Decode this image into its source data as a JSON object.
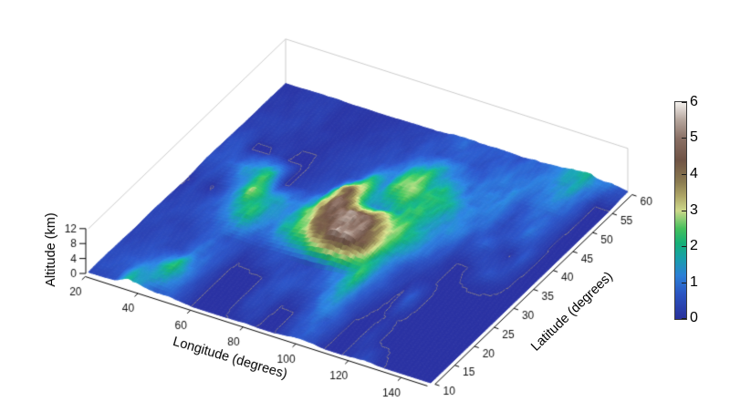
{
  "figure": {
    "background": "#ffffff",
    "box_color": "#cccccc",
    "axis_color": "#000000",
    "tick_label_color": "#111111",
    "coastline_color": "#b3a27c",
    "tick_font_px": 12
  },
  "chart_data": {
    "type": "surface",
    "title": "",
    "xlabel": "Longitude (degrees)",
    "ylabel": "Latitude (degrees)",
    "zlabel": "Altitude (km)",
    "x_range": [
      20,
      150
    ],
    "y_range": [
      10,
      60
    ],
    "z_range": [
      0,
      12
    ],
    "x_ticks": [
      20,
      40,
      60,
      80,
      100,
      120,
      140
    ],
    "y_ticks": [
      10,
      15,
      20,
      25,
      30,
      35,
      40,
      45,
      50,
      55,
      60
    ],
    "z_ticks": [
      0,
      4,
      8,
      12
    ],
    "color_range": [
      0,
      6
    ],
    "colorbar_ticks": [
      0,
      1,
      2,
      3,
      4,
      5,
      6
    ],
    "colormap": [
      [
        0.0,
        "#28309a"
      ],
      [
        0.7,
        "#2b55c2"
      ],
      [
        1.2,
        "#2b7fd6"
      ],
      [
        1.7,
        "#17a0a8"
      ],
      [
        2.1,
        "#16b077"
      ],
      [
        2.5,
        "#45c05c"
      ],
      [
        3.0,
        "#cdd88a"
      ],
      [
        3.4,
        "#ada566"
      ],
      [
        3.8,
        "#8a7a50"
      ],
      [
        4.4,
        "#6f5345"
      ],
      [
        5.0,
        "#8a7065"
      ],
      [
        5.5,
        "#b5a59c"
      ],
      [
        6.0,
        "#f4f1ee"
      ]
    ],
    "elevation_grid_km": {
      "lon_start": 20,
      "lon_step": 5,
      "lat_start": 10,
      "lat_step": 5,
      "rows_south_to_north": [
        [
          0.5,
          0.6,
          0.5,
          2.0,
          1.2,
          0.8,
          0.9,
          0.4,
          0,
          0,
          0,
          0.1,
          0.2,
          0,
          0,
          0.4,
          0.8,
          0.5,
          0,
          0,
          0.2,
          0.4,
          0.1,
          0,
          0,
          0,
          0
        ],
        [
          0.4,
          0.5,
          0.6,
          0.9,
          1.4,
          2.2,
          0.9,
          0.3,
          0,
          0,
          0,
          0.4,
          0.5,
          0,
          0,
          0.6,
          1.0,
          0.6,
          0,
          0,
          0.2,
          0,
          0,
          0,
          0,
          0,
          0
        ],
        [
          0.3,
          0.4,
          0.4,
          0.3,
          0.4,
          0.9,
          0.8,
          0.4,
          0,
          0,
          0,
          0.3,
          0.5,
          0.4,
          0.5,
          0.9,
          1.3,
          0.6,
          0.1,
          0,
          0.1,
          0,
          0,
          0,
          0,
          0,
          0
        ],
        [
          0.3,
          0.3,
          0.3,
          0.3,
          0.5,
          0.9,
          0.7,
          0.4,
          0.2,
          0.4,
          0.8,
          0.4,
          0.3,
          0.5,
          0.8,
          1.6,
          2.0,
          0.8,
          0.3,
          0,
          0.7,
          0,
          0,
          0,
          0,
          0,
          0
        ],
        [
          0.2,
          0.3,
          0.4,
          0.5,
          0.8,
          1.3,
          2.0,
          1.5,
          1.2,
          1.8,
          2.2,
          3.2,
          5.0,
          5.4,
          5.1,
          3.8,
          2.3,
          1.1,
          0.4,
          0.2,
          0.1,
          0,
          0,
          0,
          0,
          0,
          0
        ],
        [
          0,
          0.3,
          0,
          0.6,
          1.6,
          2.6,
          1.7,
          1.4,
          1.2,
          1.8,
          3.6,
          4.9,
          5.1,
          5.2,
          4.7,
          3.7,
          2.7,
          1.5,
          1.0,
          0.5,
          0.1,
          0,
          0.2,
          0.6,
          0.3,
          0,
          0
        ],
        [
          0.5,
          0.6,
          0.9,
          1.4,
          1.9,
          1.8,
          0,
          0.2,
          0.4,
          0.8,
          3.2,
          4.2,
          1.5,
          1.2,
          1.6,
          2.3,
          1.9,
          1.6,
          1.3,
          1.0,
          0.4,
          0.8,
          0.5,
          0,
          0.6,
          0,
          0
        ],
        [
          0.3,
          0.5,
          0,
          0,
          0.2,
          0,
          0,
          0.2,
          0.3,
          0.4,
          0.7,
          1.9,
          1.3,
          2.6,
          2.7,
          2.1,
          2.5,
          1.7,
          1.2,
          1.1,
          1.0,
          0.4,
          0.6,
          0.9,
          0.3,
          0,
          0
        ],
        [
          0.2,
          0.3,
          0.2,
          0.2,
          0.1,
          0.1,
          0.1,
          0.2,
          0.2,
          0.3,
          0.4,
          0.6,
          0.9,
          1.6,
          2.1,
          1.8,
          1.6,
          0.8,
          1.2,
          1.3,
          1.0,
          0.7,
          0.8,
          1.0,
          0.5,
          0,
          0
        ],
        [
          0.2,
          0.2,
          0.2,
          0.2,
          0.2,
          0.1,
          0.1,
          0.1,
          0.2,
          0.2,
          0.3,
          0.4,
          0.5,
          0.6,
          0.7,
          0.6,
          0.7,
          0.8,
          0.9,
          0.8,
          1.1,
          1.0,
          1.3,
          1.5,
          1.0,
          0,
          0
        ],
        [
          0.1,
          0.1,
          0.2,
          0.2,
          0.2,
          0.1,
          0.1,
          0.1,
          0.1,
          0.2,
          0.2,
          0.3,
          0.5,
          0.6,
          0.7,
          0.7,
          0.8,
          0.7,
          0.6,
          0.8,
          1.0,
          1.2,
          1.5,
          1.8,
          1.4,
          1.0,
          0.5
        ]
      ]
    }
  }
}
